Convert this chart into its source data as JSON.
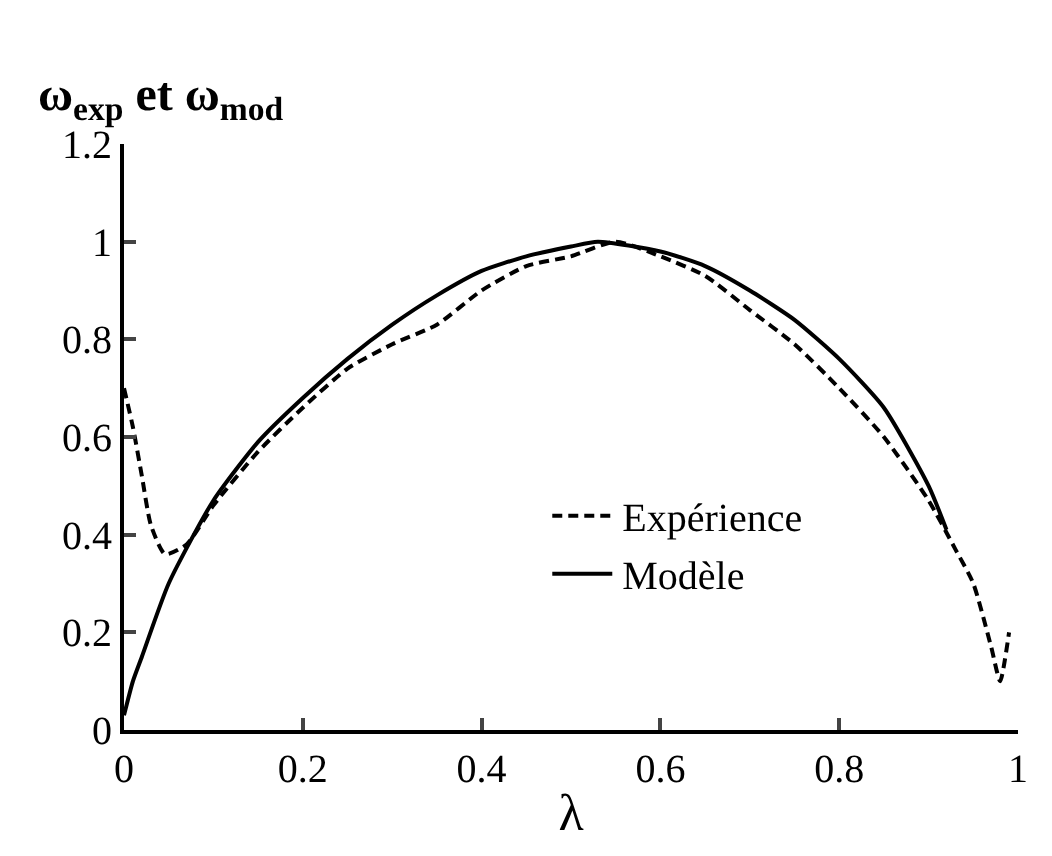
{
  "chart_data": {
    "type": "line",
    "ylabel": "ω$_{exp}$ et ω$_{mod}$",
    "xlabel": "λ",
    "xlim": [
      0,
      1
    ],
    "xticks": [
      0,
      0.2,
      0.4,
      0.6,
      0.8,
      1
    ],
    "ylim": [
      0,
      1.2
    ],
    "yticks": [
      0,
      0.2,
      0.4,
      0.6,
      0.8,
      1,
      1.2
    ],
    "legend": "bottom center",
    "series": [
      {
        "name": "Expérience",
        "color": "#000000",
        "line_style": "dashed",
        "x": [
          0,
          0.01,
          0.02,
          0.03,
          0.046,
          0.07,
          0.1,
          0.15,
          0.2,
          0.25,
          0.3,
          0.35,
          0.4,
          0.45,
          0.5,
          0.55,
          0.6,
          0.65,
          0.7,
          0.75,
          0.8,
          0.85,
          0.9,
          0.93,
          0.95,
          0.97,
          0.98,
          0.99
        ],
        "values": [
          0.7,
          0.62,
          0.52,
          0.42,
          0.36,
          0.38,
          0.46,
          0.57,
          0.66,
          0.74,
          0.79,
          0.83,
          0.9,
          0.95,
          0.97,
          1.0,
          0.97,
          0.93,
          0.86,
          0.79,
          0.7,
          0.6,
          0.47,
          0.37,
          0.3,
          0.17,
          0.1,
          0.2
        ]
      },
      {
        "name": "Modèle",
        "color": "#000000",
        "line_style": "solid",
        "x": [
          0,
          0.01,
          0.02,
          0.05,
          0.1,
          0.15,
          0.2,
          0.25,
          0.3,
          0.35,
          0.4,
          0.45,
          0.5,
          0.53,
          0.6,
          0.65,
          0.7,
          0.75,
          0.8,
          0.85,
          0.9,
          0.92
        ],
        "values": [
          0.03,
          0.1,
          0.15,
          0.3,
          0.47,
          0.59,
          0.68,
          0.76,
          0.83,
          0.89,
          0.94,
          0.97,
          0.99,
          1.0,
          0.98,
          0.95,
          0.9,
          0.84,
          0.76,
          0.66,
          0.5,
          0.41
        ]
      }
    ]
  }
}
